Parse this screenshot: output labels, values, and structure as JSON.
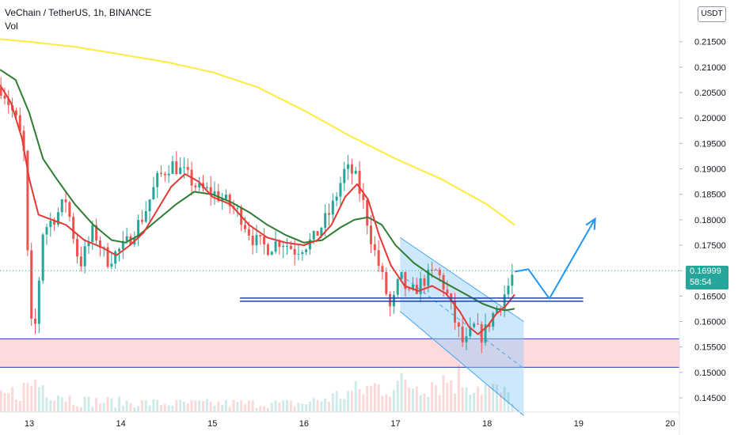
{
  "legend": {
    "title": "VeChain / TetherUS, 1h, BINANCE",
    "indicator": "Vol"
  },
  "currency_button": "USDT",
  "last_price": {
    "value": "0.16999",
    "countdown": "58:54",
    "color": "#26a69a"
  },
  "colors": {
    "up": "#26a69a",
    "down": "#ef5350",
    "ma_fast": "#e53935",
    "ma_mid": "#2e7d32",
    "ma_slow": "#ffeb3b",
    "projection": "#2196f3",
    "support_line": "#1e3fb0",
    "zone_fill": "#ffcdd2"
  },
  "chart_data": {
    "type": "candlestick",
    "title": "VeChain / TetherUS, 1h, BINANCE",
    "x_tick_labels": [
      "13",
      "14",
      "15",
      "16",
      "17",
      "18",
      "19",
      "20"
    ],
    "x_ticks_day": [
      13,
      14,
      15,
      16,
      17,
      18,
      19,
      20
    ],
    "x_range_day": [
      12.68,
      20.1
    ],
    "y_tick_labels": [
      "0.21500",
      "0.21000",
      "0.20500",
      "0.20000",
      "0.19500",
      "0.19000",
      "0.18500",
      "0.18000",
      "0.17500",
      "0.17000",
      "0.16500",
      "0.16000",
      "0.15500",
      "0.15000",
      "0.14500"
    ],
    "y_range": [
      0.1422,
      0.2232
    ],
    "candle_anchors": [
      [
        12.7,
        0.206
      ],
      [
        12.8,
        0.202
      ],
      [
        12.88,
        0.1985
      ],
      [
        12.95,
        0.192
      ],
      [
        13.0,
        0.162
      ],
      [
        13.05,
        0.156
      ],
      [
        13.15,
        0.178
      ],
      [
        13.3,
        0.181
      ],
      [
        13.4,
        0.184
      ],
      [
        13.55,
        0.171
      ],
      [
        13.7,
        0.178
      ],
      [
        13.85,
        0.172
      ],
      [
        14.05,
        0.175
      ],
      [
        14.25,
        0.181
      ],
      [
        14.4,
        0.188
      ],
      [
        14.55,
        0.191
      ],
      [
        14.7,
        0.189
      ],
      [
        14.85,
        0.186
      ],
      [
        15.0,
        0.1855
      ],
      [
        15.15,
        0.1835
      ],
      [
        15.3,
        0.181
      ],
      [
        15.45,
        0.176
      ],
      [
        15.6,
        0.1745
      ],
      [
        15.75,
        0.176
      ],
      [
        15.9,
        0.174
      ],
      [
        16.1,
        0.176
      ],
      [
        16.3,
        0.182
      ],
      [
        16.45,
        0.19
      ],
      [
        16.55,
        0.189
      ],
      [
        16.65,
        0.183
      ],
      [
        16.75,
        0.175
      ],
      [
        16.85,
        0.169
      ],
      [
        16.95,
        0.162
      ],
      [
        17.05,
        0.169
      ],
      [
        17.15,
        0.165
      ],
      [
        17.3,
        0.168
      ],
      [
        17.45,
        0.17
      ],
      [
        17.55,
        0.166
      ],
      [
        17.65,
        0.16
      ],
      [
        17.75,
        0.155
      ],
      [
        17.85,
        0.159
      ],
      [
        17.95,
        0.157
      ],
      [
        18.05,
        0.161
      ],
      [
        18.15,
        0.164
      ],
      [
        18.22,
        0.1665
      ],
      [
        18.3,
        0.17
      ]
    ],
    "volume_anchors": [
      [
        12.7,
        0.25
      ],
      [
        13.0,
        0.45
      ],
      [
        13.05,
        0.55
      ],
      [
        13.5,
        0.2
      ],
      [
        14.5,
        0.15
      ],
      [
        16.0,
        0.15
      ],
      [
        16.8,
        0.45
      ],
      [
        17.2,
        0.5
      ],
      [
        17.7,
        0.6
      ],
      [
        18.3,
        0.25
      ]
    ],
    "ma_fast": [
      [
        12.68,
        0.2065
      ],
      [
        12.8,
        0.203
      ],
      [
        12.92,
        0.196
      ],
      [
        13.0,
        0.188
      ],
      [
        13.1,
        0.181
      ],
      [
        13.25,
        0.18
      ],
      [
        13.4,
        0.179
      ],
      [
        13.6,
        0.176
      ],
      [
        13.8,
        0.1745
      ],
      [
        13.95,
        0.173
      ],
      [
        14.1,
        0.175
      ],
      [
        14.25,
        0.1775
      ],
      [
        14.4,
        0.182
      ],
      [
        14.55,
        0.1865
      ],
      [
        14.7,
        0.189
      ],
      [
        14.85,
        0.1875
      ],
      [
        15.0,
        0.1845
      ],
      [
        15.2,
        0.183
      ],
      [
        15.4,
        0.179
      ],
      [
        15.6,
        0.1765
      ],
      [
        15.8,
        0.1755
      ],
      [
        16.0,
        0.175
      ],
      [
        16.15,
        0.176
      ],
      [
        16.3,
        0.179
      ],
      [
        16.45,
        0.1845
      ],
      [
        16.58,
        0.187
      ],
      [
        16.7,
        0.184
      ],
      [
        16.82,
        0.177
      ],
      [
        16.95,
        0.171
      ],
      [
        17.1,
        0.167
      ],
      [
        17.25,
        0.166
      ],
      [
        17.4,
        0.167
      ],
      [
        17.55,
        0.1655
      ],
      [
        17.7,
        0.162
      ],
      [
        17.8,
        0.159
      ],
      [
        17.9,
        0.1575
      ],
      [
        18.0,
        0.159
      ],
      [
        18.1,
        0.1615
      ],
      [
        18.2,
        0.163
      ],
      [
        18.3,
        0.1653
      ]
    ],
    "ma_mid": [
      [
        12.68,
        0.2095
      ],
      [
        12.85,
        0.2075
      ],
      [
        13.0,
        0.201
      ],
      [
        13.15,
        0.192
      ],
      [
        13.3,
        0.188
      ],
      [
        13.5,
        0.183
      ],
      [
        13.7,
        0.179
      ],
      [
        13.9,
        0.176
      ],
      [
        14.05,
        0.1755
      ],
      [
        14.2,
        0.177
      ],
      [
        14.4,
        0.18
      ],
      [
        14.6,
        0.183
      ],
      [
        14.8,
        0.1855
      ],
      [
        15.0,
        0.185
      ],
      [
        15.2,
        0.1835
      ],
      [
        15.4,
        0.1815
      ],
      [
        15.6,
        0.179
      ],
      [
        15.8,
        0.177
      ],
      [
        16.0,
        0.1755
      ],
      [
        16.2,
        0.176
      ],
      [
        16.4,
        0.1785
      ],
      [
        16.55,
        0.18
      ],
      [
        16.7,
        0.1805
      ],
      [
        16.85,
        0.179
      ],
      [
        17.0,
        0.175
      ],
      [
        17.2,
        0.1715
      ],
      [
        17.4,
        0.169
      ],
      [
        17.6,
        0.167
      ],
      [
        17.8,
        0.165
      ],
      [
        17.95,
        0.1635
      ],
      [
        18.1,
        0.1625
      ],
      [
        18.2,
        0.1622
      ],
      [
        18.3,
        0.1625
      ]
    ],
    "ma_slow": [
      [
        12.68,
        0.2155
      ],
      [
        13.0,
        0.215
      ],
      [
        13.5,
        0.214
      ],
      [
        14.0,
        0.2125
      ],
      [
        14.5,
        0.211
      ],
      [
        15.0,
        0.209
      ],
      [
        15.5,
        0.206
      ],
      [
        16.0,
        0.2015
      ],
      [
        16.5,
        0.1965
      ],
      [
        17.0,
        0.192
      ],
      [
        17.5,
        0.188
      ],
      [
        18.0,
        0.183
      ],
      [
        18.3,
        0.179
      ]
    ],
    "support_level": 0.1643,
    "support_x_range_day": [
      15.3,
      19.05
    ],
    "demand_zone": [
      0.151,
      0.1566
    ],
    "channel": {
      "upper": [
        [
          17.05,
          0.1765
        ],
        [
          18.4,
          0.16
        ]
      ],
      "lower": [
        [
          17.05,
          0.162
        ],
        [
          18.4,
          0.1415
        ]
      ]
    },
    "projection_path": [
      [
        18.3,
        0.1698
      ],
      [
        18.45,
        0.1703
      ],
      [
        18.68,
        0.1645
      ],
      [
        19.18,
        0.1802
      ]
    ],
    "last_price_level": 0.16999
  }
}
